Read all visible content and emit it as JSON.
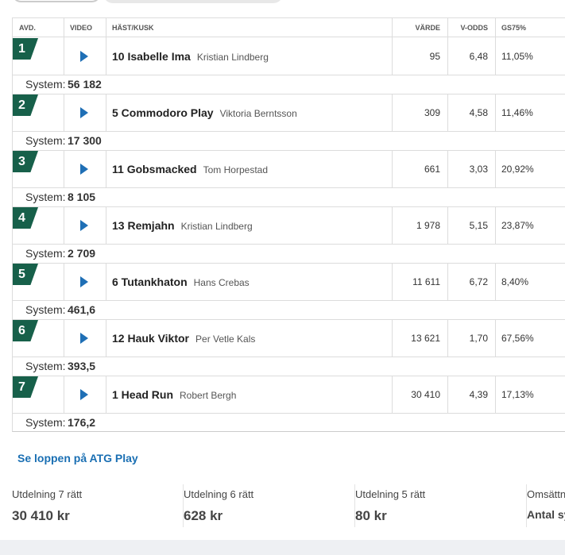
{
  "header": {
    "columns": [
      "AVD.",
      "VIDEO",
      "HÄST/KUSK",
      "VÄRDE",
      "V-ODDS",
      "GS75%"
    ]
  },
  "system_label": "System:",
  "races": [
    {
      "avd": "1",
      "horse": "10 Isabelle Ima",
      "driver": "Kristian Lindberg",
      "value": "95",
      "odds": "6,48",
      "gs75": "11,05%",
      "system": "56 182"
    },
    {
      "avd": "2",
      "horse": "5 Commodoro Play",
      "driver": "Viktoria Berntsson",
      "value": "309",
      "odds": "4,58",
      "gs75": "11,46%",
      "system": "17 300"
    },
    {
      "avd": "3",
      "horse": "11 Gobsmacked",
      "driver": "Tom Horpestad",
      "value": "661",
      "odds": "3,03",
      "gs75": "20,92%",
      "system": "8 105"
    },
    {
      "avd": "4",
      "horse": "13 Remjahn",
      "driver": "Kristian Lindberg",
      "value": "1 978",
      "odds": "5,15",
      "gs75": "23,87%",
      "system": "2 709"
    },
    {
      "avd": "5",
      "horse": "6 Tutankhaton",
      "driver": "Hans Crebas",
      "value": "11 611",
      "odds": "6,72",
      "gs75": "8,40%",
      "system": "461,6"
    },
    {
      "avd": "6",
      "horse": "12 Hauk Viktor",
      "driver": "Per Vetle Kals",
      "value": "13 621",
      "odds": "1,70",
      "gs75": "67,56%",
      "system": "393,5"
    },
    {
      "avd": "7",
      "horse": "1 Head Run",
      "driver": "Robert Bergh",
      "value": "30 410",
      "odds": "4,39",
      "gs75": "17,13%",
      "system": "176,2"
    }
  ],
  "link": "Se loppen på ATG Play",
  "payouts": [
    {
      "label": "Utdelning 7 rätt",
      "amount": "30 410 kr"
    },
    {
      "label": "Utdelning 6 rätt",
      "amount": "628 kr"
    },
    {
      "label": "Utdelning 5 rätt",
      "amount": "80 kr"
    },
    {
      "label": "Omsättning",
      "amount": "Antal system"
    }
  ]
}
